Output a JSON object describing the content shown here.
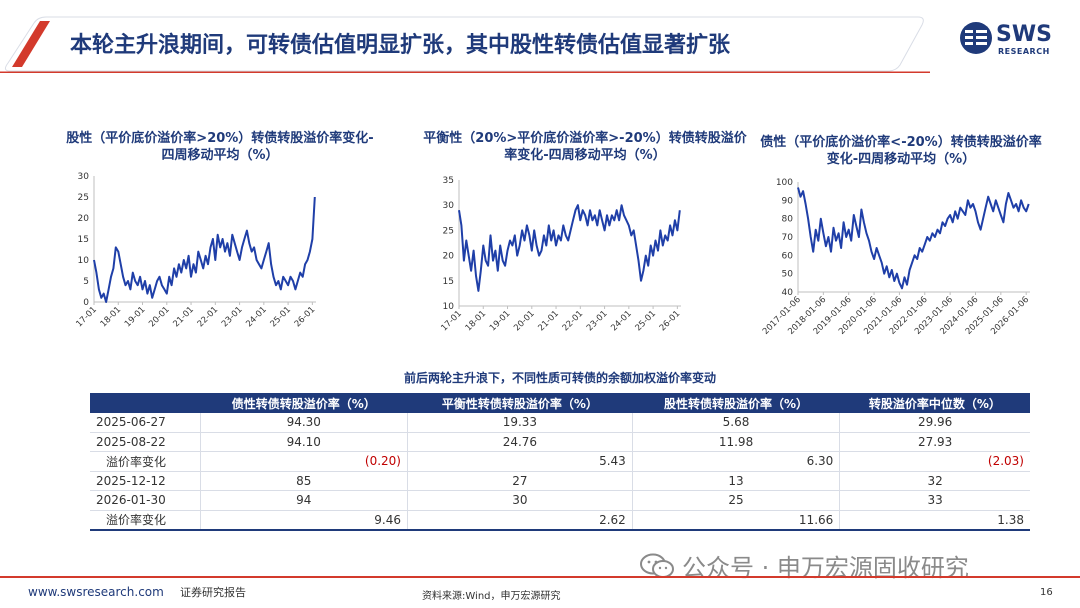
{
  "header": {
    "title": "本轮主升浪期间，可转债估值明显扩张，其中股性转债估值显著扩张",
    "logo_word": "SWS",
    "logo_sub": "RESEARCH"
  },
  "colors": {
    "brand": "#1f3a7a",
    "accent_red": "#d33a2c",
    "negative": "#c00000"
  },
  "chart_data": [
    {
      "type": "line",
      "title": "股性（平价底价溢价率>20%）转债转股溢价率变化-四周移动平均（%）",
      "xlabel": "",
      "ylabel": "",
      "ylim": [
        0,
        30
      ],
      "yticks": [
        0,
        5,
        10,
        15,
        20,
        25,
        30
      ],
      "xlim": [
        2017.0,
        2026.15
      ],
      "xticks": [
        {
          "label": "17-01",
          "x": 2017.0
        },
        {
          "label": "18-01",
          "x": 2018.0
        },
        {
          "label": "19-01",
          "x": 2019.0
        },
        {
          "label": "20-01",
          "x": 2020.0
        },
        {
          "label": "21-01",
          "x": 2021.0
        },
        {
          "label": "22-01",
          "x": 2022.0
        },
        {
          "label": "23-01",
          "x": 2023.0
        },
        {
          "label": "24-01",
          "x": 2024.0
        },
        {
          "label": "25-01",
          "x": 2025.0
        },
        {
          "label": "26-01",
          "x": 2026.0
        }
      ],
      "grid": false,
      "series": [
        {
          "name": "",
          "x": [
            2017.0,
            2017.1,
            2017.2,
            2017.3,
            2017.4,
            2017.5,
            2017.6,
            2017.7,
            2017.8,
            2017.9,
            2018.0,
            2018.1,
            2018.2,
            2018.3,
            2018.4,
            2018.5,
            2018.6,
            2018.7,
            2018.8,
            2018.9,
            2019.0,
            2019.1,
            2019.2,
            2019.3,
            2019.4,
            2019.5,
            2019.6,
            2019.7,
            2019.8,
            2019.9,
            2020.0,
            2020.1,
            2020.2,
            2020.3,
            2020.4,
            2020.5,
            2020.6,
            2020.7,
            2020.8,
            2020.9,
            2021.0,
            2021.1,
            2021.2,
            2021.3,
            2021.4,
            2021.5,
            2021.6,
            2021.7,
            2021.8,
            2021.9,
            2022.0,
            2022.1,
            2022.2,
            2022.3,
            2022.4,
            2022.5,
            2022.6,
            2022.7,
            2022.8,
            2022.9,
            2023.0,
            2023.1,
            2023.2,
            2023.3,
            2023.4,
            2023.5,
            2023.6,
            2023.7,
            2023.8,
            2023.9,
            2024.0,
            2024.1,
            2024.2,
            2024.3,
            2024.4,
            2024.5,
            2024.6,
            2024.7,
            2024.8,
            2024.9,
            2025.0,
            2025.1,
            2025.2,
            2025.3,
            2025.4,
            2025.5,
            2025.6,
            2025.7,
            2025.8,
            2025.9,
            2026.0,
            2026.1
          ],
          "y": [
            10,
            7,
            3,
            1,
            2,
            0,
            3,
            6,
            8,
            13,
            12,
            9,
            6,
            4,
            5,
            3,
            7,
            5,
            4,
            6,
            3,
            5,
            2,
            4,
            1,
            3,
            5,
            6,
            4,
            3,
            2,
            6,
            4,
            8,
            6,
            9,
            7,
            10,
            8,
            11,
            6,
            9,
            7,
            12,
            10,
            8,
            11,
            9,
            13,
            15,
            10,
            16,
            13,
            15,
            12,
            14,
            11,
            16,
            14,
            12,
            10,
            13,
            15,
            17,
            14,
            12,
            13,
            10,
            9,
            8,
            10,
            12,
            14,
            9,
            6,
            4,
            5,
            3,
            6,
            5,
            4,
            6,
            5,
            3,
            5,
            7,
            6,
            9,
            10,
            12,
            15,
            25
          ]
        }
      ]
    },
    {
      "type": "line",
      "title": "平衡性（20%>平价底价溢价率>-20%）转债转股溢价率变化-四周移动平均（%）",
      "xlabel": "",
      "ylabel": "",
      "ylim": [
        10,
        35
      ],
      "yticks": [
        10,
        15,
        20,
        25,
        30,
        35
      ],
      "xlim": [
        2017.0,
        2026.15
      ],
      "xticks": [
        {
          "label": "17-01",
          "x": 2017.0
        },
        {
          "label": "18-01",
          "x": 2018.0
        },
        {
          "label": "19-01",
          "x": 2019.0
        },
        {
          "label": "20-01",
          "x": 2020.0
        },
        {
          "label": "21-01",
          "x": 2021.0
        },
        {
          "label": "22-01",
          "x": 2022.0
        },
        {
          "label": "23-01",
          "x": 2023.0
        },
        {
          "label": "24-01",
          "x": 2024.0
        },
        {
          "label": "25-01",
          "x": 2025.0
        },
        {
          "label": "26-01",
          "x": 2026.0
        }
      ],
      "grid": false,
      "series": [
        {
          "name": "",
          "x": [
            2017.0,
            2017.1,
            2017.2,
            2017.3,
            2017.4,
            2017.5,
            2017.6,
            2017.7,
            2017.8,
            2017.9,
            2018.0,
            2018.1,
            2018.2,
            2018.3,
            2018.4,
            2018.5,
            2018.6,
            2018.7,
            2018.8,
            2018.9,
            2019.0,
            2019.1,
            2019.2,
            2019.3,
            2019.4,
            2019.5,
            2019.6,
            2019.7,
            2019.8,
            2019.9,
            2020.0,
            2020.1,
            2020.2,
            2020.3,
            2020.4,
            2020.5,
            2020.6,
            2020.7,
            2020.8,
            2020.9,
            2021.0,
            2021.1,
            2021.2,
            2021.3,
            2021.4,
            2021.5,
            2021.6,
            2021.7,
            2021.8,
            2021.9,
            2022.0,
            2022.1,
            2022.2,
            2022.3,
            2022.4,
            2022.5,
            2022.6,
            2022.7,
            2022.8,
            2022.9,
            2023.0,
            2023.1,
            2023.2,
            2023.3,
            2023.4,
            2023.5,
            2023.6,
            2023.7,
            2023.8,
            2023.9,
            2024.0,
            2024.1,
            2024.2,
            2024.3,
            2024.4,
            2024.5,
            2024.6,
            2024.7,
            2024.8,
            2024.9,
            2025.0,
            2025.1,
            2025.2,
            2025.3,
            2025.4,
            2025.5,
            2025.6,
            2025.7,
            2025.8,
            2025.9,
            2026.0,
            2026.1
          ],
          "y": [
            29,
            26,
            19,
            23,
            20,
            17,
            21,
            16,
            13,
            17,
            22,
            19,
            18,
            24,
            19,
            21,
            17,
            22,
            19,
            18,
            21,
            23,
            22,
            24,
            20,
            22,
            25,
            23,
            26,
            24,
            21,
            25,
            22,
            20,
            21,
            24,
            22,
            26,
            23,
            25,
            22,
            24,
            23,
            26,
            24,
            23,
            25,
            27,
            29,
            30,
            27,
            29,
            28,
            26,
            29,
            27,
            28,
            26,
            29,
            27,
            25,
            28,
            26,
            28,
            27,
            29,
            27,
            30,
            28,
            27,
            26,
            24,
            25,
            22,
            19,
            15,
            17,
            20,
            18,
            22,
            20,
            23,
            21,
            25,
            22,
            24,
            23,
            26,
            24,
            27,
            25,
            29
          ]
        }
      ]
    },
    {
      "type": "line",
      "title": "债性（平价底价溢价率<-20%）转债转股溢价率变化-四周移动平均（%）",
      "xlabel": "",
      "ylabel": "",
      "ylim": [
        40,
        100
      ],
      "yticks": [
        40,
        50,
        60,
        70,
        80,
        90,
        100
      ],
      "xlim": [
        2017.0,
        2026.15
      ],
      "xticks": [
        {
          "label": "2017-01-06",
          "x": 2017.0
        },
        {
          "label": "2018-01-06",
          "x": 2018.0
        },
        {
          "label": "2019-01-06",
          "x": 2019.0
        },
        {
          "label": "2020-01-06",
          "x": 2020.0
        },
        {
          "label": "2021-01-06",
          "x": 2021.0
        },
        {
          "label": "2022-01-06",
          "x": 2022.0
        },
        {
          "label": "2023-01-06",
          "x": 2023.0
        },
        {
          "label": "2024-01-06",
          "x": 2024.0
        },
        {
          "label": "2025-01-06",
          "x": 2025.0
        },
        {
          "label": "2026-01-06",
          "x": 2026.0
        }
      ],
      "grid": false,
      "series": [
        {
          "name": "",
          "x": [
            2017.0,
            2017.1,
            2017.2,
            2017.3,
            2017.4,
            2017.5,
            2017.6,
            2017.7,
            2017.8,
            2017.9,
            2018.0,
            2018.1,
            2018.2,
            2018.3,
            2018.4,
            2018.5,
            2018.6,
            2018.7,
            2018.8,
            2018.9,
            2019.0,
            2019.1,
            2019.2,
            2019.3,
            2019.4,
            2019.5,
            2019.6,
            2019.7,
            2019.8,
            2019.9,
            2020.0,
            2020.1,
            2020.2,
            2020.3,
            2020.4,
            2020.5,
            2020.6,
            2020.7,
            2020.8,
            2020.9,
            2021.0,
            2021.1,
            2021.2,
            2021.3,
            2021.4,
            2021.5,
            2021.6,
            2021.7,
            2021.8,
            2021.9,
            2022.0,
            2022.1,
            2022.2,
            2022.3,
            2022.4,
            2022.5,
            2022.6,
            2022.7,
            2022.8,
            2022.9,
            2023.0,
            2023.1,
            2023.2,
            2023.3,
            2023.4,
            2023.5,
            2023.6,
            2023.7,
            2023.8,
            2023.9,
            2024.0,
            2024.1,
            2024.2,
            2024.3,
            2024.4,
            2024.5,
            2024.6,
            2024.7,
            2024.8,
            2024.9,
            2025.0,
            2025.1,
            2025.2,
            2025.3,
            2025.4,
            2025.5,
            2025.6,
            2025.7,
            2025.8,
            2025.9,
            2026.0,
            2026.1
          ],
          "y": [
            97,
            92,
            95,
            88,
            80,
            70,
            62,
            74,
            68,
            80,
            72,
            65,
            70,
            62,
            75,
            68,
            72,
            64,
            78,
            70,
            74,
            68,
            82,
            76,
            70,
            85,
            78,
            72,
            68,
            62,
            58,
            64,
            60,
            56,
            50,
            54,
            48,
            52,
            46,
            50,
            45,
            42,
            48,
            44,
            52,
            56,
            60,
            58,
            64,
            62,
            66,
            70,
            68,
            72,
            70,
            74,
            72,
            78,
            76,
            80,
            82,
            78,
            84,
            80,
            86,
            84,
            82,
            90,
            86,
            88,
            84,
            78,
            74,
            80,
            86,
            92,
            88,
            84,
            90,
            86,
            82,
            78,
            88,
            94,
            90,
            86,
            88,
            84,
            90,
            86,
            84,
            88
          ]
        }
      ]
    },
    {
      "type": "table",
      "title": "前后两轮主升浪下，不同性质可转债的余额加权溢价率变动",
      "columns": [
        "",
        "债性转债转股溢价率（%）",
        "平衡性转债转股溢价率（%）",
        "股性转债转股溢价率（%）",
        "转股溢价率中位数（%）"
      ],
      "rows": [
        {
          "label": "2025-06-27",
          "values": [
            "94.30",
            "19.33",
            "5.68",
            "29.96"
          ],
          "kind": "data"
        },
        {
          "label": "2025-08-22",
          "values": [
            "94.10",
            "24.76",
            "11.98",
            "27.93"
          ],
          "kind": "data"
        },
        {
          "label": "溢价率变化",
          "values": [
            "(0.20)",
            "5.43",
            "6.30",
            "(2.03)"
          ],
          "kind": "change"
        },
        {
          "label": "2025-12-12",
          "values": [
            "85",
            "27",
            "13",
            "32"
          ],
          "kind": "data"
        },
        {
          "label": "2026-01-30",
          "values": [
            "94",
            "30",
            "25",
            "33"
          ],
          "kind": "data"
        },
        {
          "label": "溢价率变化",
          "values": [
            "9.46",
            "2.62",
            "11.66",
            "1.38"
          ],
          "kind": "change"
        }
      ]
    }
  ],
  "footer": {
    "url": "www.swsresearch.com",
    "report_type": "证券研究报告",
    "source": "资料来源:Wind，申万宏源研究",
    "page": "16",
    "watermark": "公众号 · 申万宏源固收研究"
  }
}
